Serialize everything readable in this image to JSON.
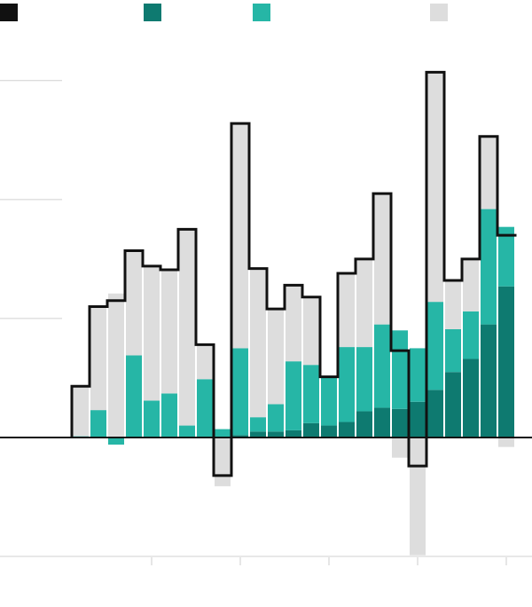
{
  "chart_data": {
    "type": "bar",
    "stacked": true,
    "grid": true,
    "categories": [
      null,
      null,
      null,
      null,
      null,
      null,
      null,
      null,
      null,
      null,
      null,
      null,
      null,
      null,
      null,
      null,
      null,
      null,
      null,
      null,
      null,
      null,
      null,
      null,
      null
    ],
    "ylim": [
      -1,
      3.2
    ],
    "yticks": [
      -1,
      0,
      1,
      2,
      3
    ],
    "series": [
      {
        "type": "step-line",
        "color": "#111111",
        "values": [
          0.43,
          1.1,
          1.15,
          1.57,
          1.44,
          1.41,
          1.75,
          0.78,
          -0.32,
          2.64,
          1.42,
          1.08,
          1.28,
          1.18,
          0.51,
          1.38,
          1.5,
          2.05,
          0.73,
          -0.24,
          3.07,
          1.32,
          1.5,
          2.53,
          1.7
        ]
      },
      {
        "color": "#0e7a70",
        "values": [
          0,
          0,
          0,
          0,
          0,
          0,
          0,
          0,
          0,
          0.02,
          0.05,
          0.05,
          0.06,
          0.12,
          0.1,
          0.13,
          0.22,
          0.25,
          0.24,
          0.3,
          0.4,
          0.55,
          0.66,
          0.95,
          1.27
        ]
      },
      {
        "color": "#26b6a6",
        "values": [
          0.01,
          0.23,
          -0.06,
          0.69,
          0.31,
          0.37,
          0.1,
          0.49,
          0.07,
          0.73,
          0.12,
          0.23,
          0.58,
          0.49,
          0.4,
          0.63,
          0.54,
          0.7,
          0.66,
          0.45,
          0.74,
          0.36,
          0.4,
          0.97,
          0.5
        ]
      },
      {
        "color": "#dddddd",
        "values": [
          0.42,
          0.87,
          1.21,
          0.88,
          1.13,
          1.04,
          1.65,
          0.29,
          -0.41,
          1.89,
          1.25,
          0.8,
          0.64,
          0.57,
          0.01,
          0.62,
          0.74,
          1.1,
          -0.17,
          -0.99,
          1.93,
          0.41,
          0.44,
          0.61,
          -0.08
        ]
      }
    ]
  }
}
